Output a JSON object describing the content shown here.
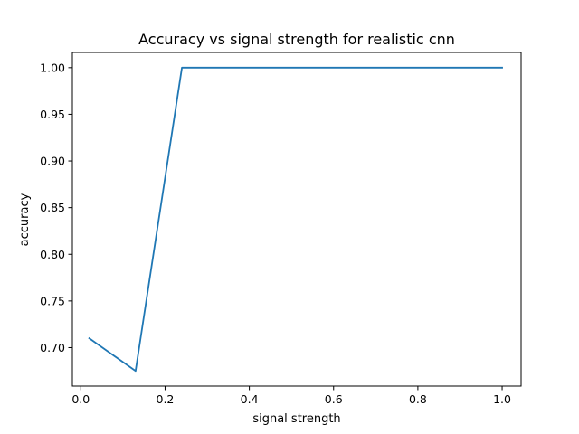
{
  "chart_data": {
    "type": "line",
    "title": "Accuracy vs signal strength for realistic cnn",
    "xlabel": "signal strength",
    "ylabel": "accuracy",
    "xlim": [
      -0.02,
      1.045
    ],
    "ylim": [
      0.6588,
      1.0163
    ],
    "xticks": [
      0.0,
      0.2,
      0.4,
      0.6,
      0.8,
      1.0
    ],
    "xtick_labels": [
      "0.0",
      "0.2",
      "0.4",
      "0.6",
      "0.8",
      "1.0"
    ],
    "yticks": [
      0.7,
      0.75,
      0.8,
      0.85,
      0.9,
      0.95,
      1.0
    ],
    "ytick_labels": [
      "0.70",
      "0.75",
      "0.80",
      "0.85",
      "0.90",
      "0.95",
      "1.00"
    ],
    "grid": false,
    "series": [
      {
        "color": "#1f77b4",
        "x": [
          0.02,
          0.13,
          0.24,
          0.35,
          0.46,
          0.57,
          0.68,
          0.79,
          0.9,
          1.0
        ],
        "y": [
          0.71,
          0.675,
          1.0,
          1.0,
          1.0,
          1.0,
          1.0,
          1.0,
          1.0,
          1.0
        ]
      }
    ]
  }
}
